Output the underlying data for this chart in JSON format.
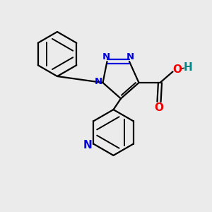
{
  "background_color": "#ebebeb",
  "bond_color": "#000000",
  "N_color": "#0000dd",
  "O_color": "#ee0000",
  "H_color": "#008888",
  "figsize": [
    3.0,
    3.0
  ],
  "dpi": 100,
  "xlim": [
    0,
    10
  ],
  "ylim": [
    0,
    10
  ]
}
